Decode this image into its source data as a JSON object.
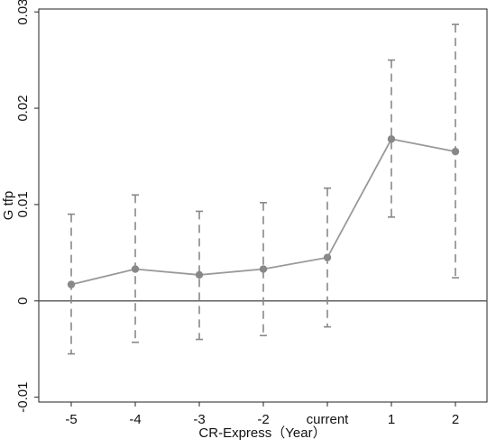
{
  "chart_data": {
    "type": "line",
    "xlabel": "CR-Express（Year）",
    "ylabel": "G tfp",
    "categories": [
      "-5",
      "-4",
      "-3",
      "-2",
      "current",
      "1",
      "2"
    ],
    "series": [
      {
        "values": [
          0.0017,
          0.0033,
          0.0027,
          0.0033,
          0.0045,
          0.0168,
          0.0155
        ],
        "ci_lower": [
          -0.0055,
          -0.0043,
          -0.004,
          -0.0036,
          -0.0027,
          0.0087,
          0.0024
        ],
        "ci_upper": [
          0.009,
          0.011,
          0.0093,
          0.0102,
          0.0117,
          0.025,
          0.0287
        ]
      }
    ],
    "yticks": [
      -0.01,
      0,
      0.01,
      0.02,
      0.03
    ],
    "ytick_labels": [
      "-0.01",
      "0",
      "0.01",
      "0.02",
      "0.03"
    ],
    "ylim": [
      -0.0105,
      0.0303
    ],
    "reference_line": 0,
    "grid": false,
    "colors": {
      "series": "#999999",
      "marker": "#888888",
      "errorbar": "#888888",
      "reference": "#555555",
      "axis": "#222222"
    }
  }
}
